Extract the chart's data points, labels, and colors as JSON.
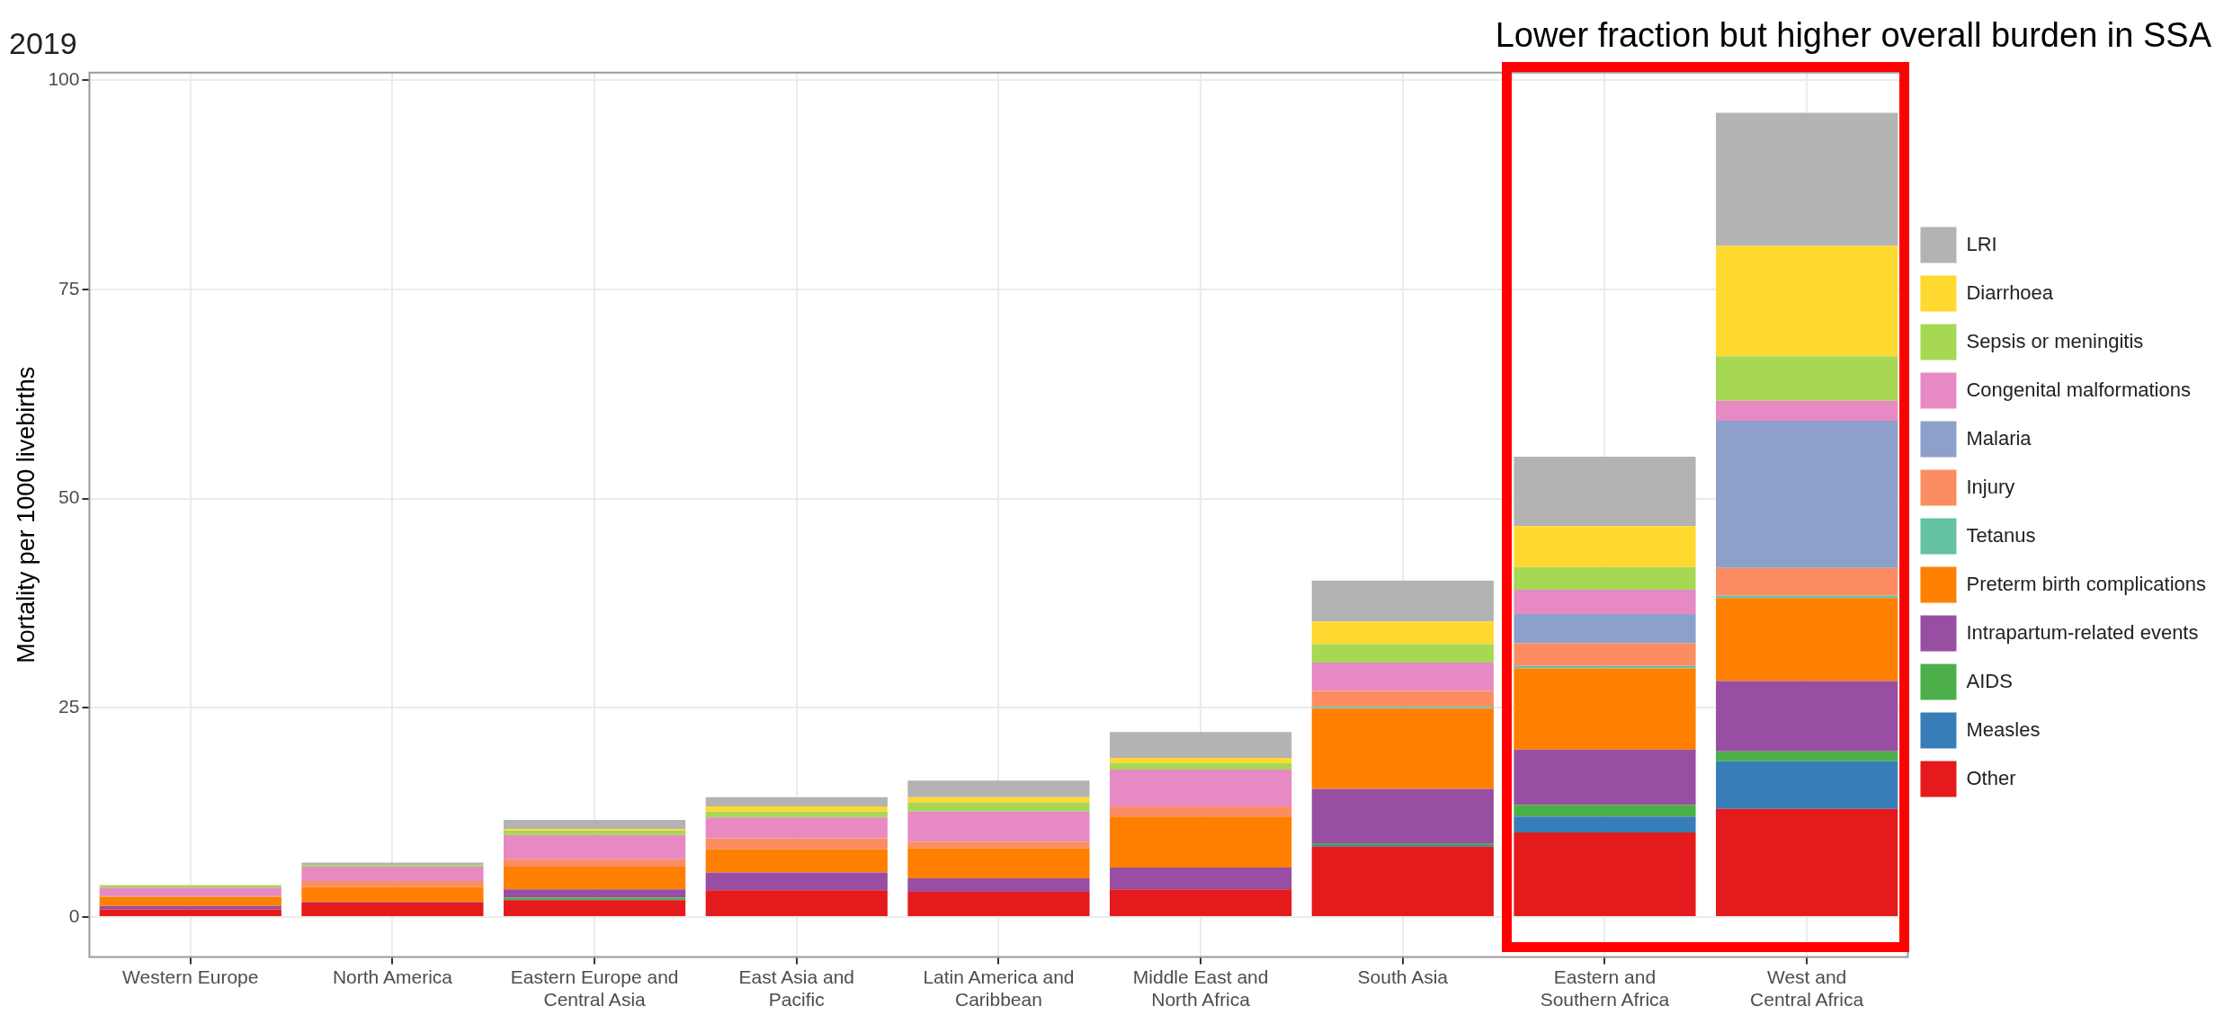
{
  "chart_data": {
    "type": "bar",
    "title": "2019",
    "ylabel": "Mortality per 1000 livebirths",
    "annotations": [
      "Lower fraction but higher overall burden in SSA"
    ],
    "categories": [
      "Western Europe",
      "North America",
      "Eastern Europe and\nCentral Asia",
      "East Asia and\nPacific",
      "Latin America and\nCaribbean",
      "Middle East and\nNorth Africa",
      "South Asia",
      "Eastern and\nSouthern Africa",
      "West and\nCentral Africa"
    ],
    "stacked": true,
    "ylim": [
      -4.8,
      100.9
    ],
    "yticks": [
      0,
      25,
      50,
      75,
      100
    ],
    "grid": true,
    "legend": "right",
    "series": [
      {
        "name": "Other",
        "color": "#e41a1c",
        "values": [
          0.9,
          1.7,
          2.0,
          3.2,
          3.0,
          3.3,
          8.4,
          10.1,
          12.9
        ]
      },
      {
        "name": "Measles",
        "color": "#377eb8",
        "values": [
          0,
          0,
          0,
          0,
          0,
          0,
          0.2,
          1.9,
          5.7
        ]
      },
      {
        "name": "AIDS",
        "color": "#4daf4a",
        "values": [
          0,
          0,
          0.3,
          0,
          0,
          0,
          0.2,
          1.4,
          1.2
        ]
      },
      {
        "name": "Intrapartum-related events",
        "color": "#984ea3",
        "values": [
          0.4,
          0.1,
          1.0,
          2.1,
          1.6,
          2.6,
          6.5,
          6.6,
          8.4
        ]
      },
      {
        "name": "Preterm birth complications",
        "color": "#ff7f00",
        "values": [
          1.1,
          1.8,
          2.7,
          2.8,
          3.6,
          6.1,
          9.6,
          9.7,
          9.9
        ]
      },
      {
        "name": "Tetanus",
        "color": "#66c2a5",
        "values": [
          0,
          0,
          0,
          0,
          0,
          0,
          0.2,
          0.3,
          0.3
        ]
      },
      {
        "name": "Injury",
        "color": "#fc8d62",
        "values": [
          0.1,
          0.7,
          0.9,
          1.3,
          0.8,
          1.2,
          1.9,
          2.7,
          3.3
        ]
      },
      {
        "name": "Malaria",
        "color": "#8da0cb",
        "values": [
          0,
          0,
          0,
          0,
          0,
          0,
          0,
          3.5,
          17.6
        ]
      },
      {
        "name": "Congenital malformations",
        "color": "#e78ac3",
        "values": [
          1.0,
          1.7,
          2.9,
          2.5,
          3.6,
          4.4,
          3.4,
          2.9,
          2.4
        ]
      },
      {
        "name": "Sepsis or meningitis",
        "color": "#a6d854",
        "values": [
          0.3,
          0.2,
          0.5,
          0.7,
          1.1,
          0.8,
          2.2,
          2.7,
          5.3
        ]
      },
      {
        "name": "Diarrhoea",
        "color": "#ffd92f",
        "values": [
          0,
          0,
          0.2,
          0.6,
          0.6,
          0.6,
          2.7,
          4.9,
          13.2
        ]
      },
      {
        "name": "LRI",
        "color": "#b3b3b3",
        "values": [
          null,
          0.3,
          1.1,
          1.1,
          2.0,
          3.1,
          4.9,
          8.3,
          15.9
        ]
      }
    ]
  }
}
